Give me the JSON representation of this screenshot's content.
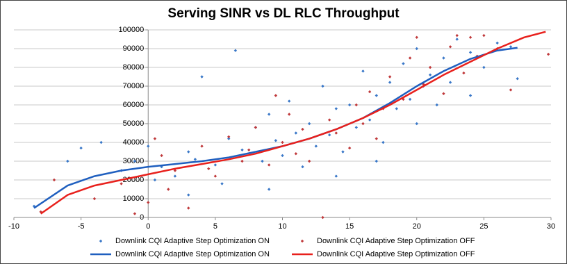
{
  "chart_data": {
    "type": "scatter",
    "title": "Serving SINR vs DL RLC Throughput",
    "xlim": [
      -10,
      30
    ],
    "xticks": [
      -10,
      -5,
      0,
      5,
      10,
      15,
      20,
      25,
      30
    ],
    "ylim": [
      0,
      100000
    ],
    "yticks": [
      0,
      10000,
      20000,
      30000,
      40000,
      50000,
      60000,
      70000,
      80000,
      90000,
      100000
    ],
    "grid": true,
    "legend": "bottom",
    "series": [
      {
        "name": "Downlink CQI Adaptive Step Optimization ON",
        "type": "scatter",
        "color": "#3a78c8",
        "x": [
          -8.5,
          -6,
          -5,
          -3.5,
          -2,
          -1,
          0,
          0.5,
          1,
          2,
          3,
          3.5,
          4,
          5,
          5.5,
          6,
          6.5,
          7,
          8,
          8.5,
          9,
          9.5,
          10,
          10.5,
          11,
          11.5,
          12,
          12.5,
          13,
          13.5,
          14,
          14.5,
          15,
          15.5,
          16,
          16.5,
          17,
          17.5,
          18,
          18.5,
          19,
          19.5,
          20,
          20.5,
          21,
          21.5,
          22,
          22.5,
          23,
          24,
          25,
          26,
          27,
          27.5,
          3,
          9,
          14,
          17,
          20,
          24
        ],
        "values": [
          6000,
          30000,
          37000,
          40000,
          25000,
          30000,
          38000,
          20000,
          27000,
          22000,
          35000,
          31000,
          75000,
          28000,
          18000,
          42000,
          89000,
          36000,
          48000,
          30000,
          55000,
          41000,
          33000,
          62000,
          45000,
          27000,
          50000,
          38000,
          70000,
          44000,
          58000,
          35000,
          60000,
          48000,
          78000,
          52000,
          65000,
          40000,
          72000,
          58000,
          82000,
          63000,
          90000,
          70000,
          76000,
          60000,
          85000,
          72000,
          95000,
          88000,
          80000,
          93000,
          91000,
          74000,
          12000,
          15000,
          22000,
          30000,
          50000,
          65000
        ]
      },
      {
        "name": "Downlink CQI Adaptive Step Optimization OFF",
        "type": "scatter",
        "color": "#c0393b",
        "x": [
          -8,
          -7,
          -4,
          -2,
          -1,
          0,
          0.5,
          1,
          1.5,
          2,
          3,
          4,
          4.5,
          5,
          6,
          7,
          7.5,
          8,
          9,
          9.5,
          10,
          10.5,
          11,
          11.5,
          12,
          13,
          13.5,
          14,
          15,
          15.5,
          16,
          16.5,
          17,
          17.5,
          18,
          19,
          19.5,
          20,
          20.5,
          21,
          22,
          22.5,
          23,
          23.5,
          24,
          24.5,
          25,
          26,
          27,
          29.8
        ],
        "values": [
          3000,
          20000,
          10000,
          18000,
          2000,
          8000,
          42000,
          33000,
          15000,
          25000,
          5000,
          38000,
          26000,
          22000,
          43000,
          30000,
          36000,
          48000,
          28000,
          65000,
          40000,
          55000,
          34000,
          47000,
          30000,
          0,
          52000,
          45000,
          37000,
          60000,
          50000,
          67000,
          42000,
          58000,
          75000,
          63000,
          85000,
          96000,
          71000,
          80000,
          66000,
          91000,
          97000,
          77000,
          96000,
          86000,
          97000,
          90000,
          68000,
          87000
        ]
      },
      {
        "name": "Downlink CQI Adaptive Step Optimization ON",
        "type": "line",
        "color": "#1f5fbf",
        "x": [
          -8.5,
          -6,
          -4,
          -2,
          0,
          2,
          4,
          6,
          8,
          10,
          12,
          14,
          16,
          18,
          20,
          22,
          24,
          26,
          27.5
        ],
        "values": [
          5000,
          17000,
          22000,
          25000,
          27000,
          28500,
          30000,
          32000,
          35000,
          38000,
          42000,
          47000,
          53000,
          61000,
          70000,
          78000,
          84500,
          89000,
          90500
        ]
      },
      {
        "name": "Downlink CQI Adaptive Step Optimization OFF",
        "type": "line",
        "color": "#e8201c",
        "x": [
          -8,
          -6,
          -4,
          -2,
          0,
          2,
          4,
          6,
          8,
          10,
          12,
          14,
          16,
          18,
          20,
          22,
          24,
          26,
          28,
          29.6
        ],
        "values": [
          2000,
          12000,
          17000,
          20000,
          23000,
          26000,
          28500,
          31000,
          34000,
          38000,
          42000,
          47000,
          53000,
          60000,
          68000,
          76000,
          83000,
          90000,
          96000,
          99000
        ]
      }
    ]
  }
}
